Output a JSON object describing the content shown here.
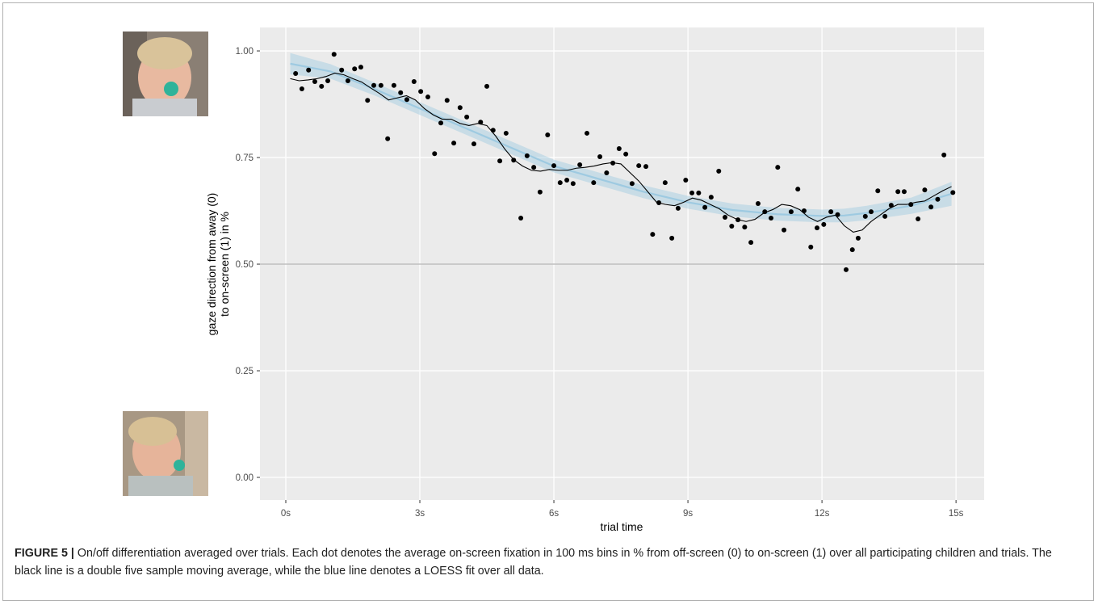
{
  "chart_data": {
    "type": "scatter",
    "xlabel": "trial time",
    "ylabel": [
      "gaze direction from away (0)",
      "to on-screen (1) in %"
    ],
    "xlim": [
      -0.578,
      15.63
    ],
    "ylim": [
      -0.053,
      1.055
    ],
    "xticks": [
      {
        "value": 0,
        "label": "0s"
      },
      {
        "value": 3,
        "label": "3s"
      },
      {
        "value": 6,
        "label": "6s"
      },
      {
        "value": 9,
        "label": "9s"
      },
      {
        "value": 12,
        "label": "12s"
      },
      {
        "value": 15,
        "label": "15s"
      }
    ],
    "yticks": [
      {
        "value": 0,
        "label": "0.00"
      },
      {
        "value": 0.25,
        "label": "0.25"
      },
      {
        "value": 0.5,
        "label": "0.50"
      },
      {
        "value": 0.75,
        "label": "0.75"
      },
      {
        "value": 1,
        "label": "1.00"
      }
    ],
    "grid": true,
    "hline": 0.5,
    "series": [
      {
        "type": "band",
        "color": "#9ecae1",
        "x": [
          0.1,
          1,
          2,
          3,
          4,
          5,
          6,
          7,
          8,
          9,
          10,
          11,
          12,
          12.5,
          13,
          14,
          14.9
        ],
        "lower": [
          0.945,
          0.935,
          0.895,
          0.85,
          0.805,
          0.76,
          0.715,
          0.685,
          0.655,
          0.63,
          0.612,
          0.602,
          0.598,
          0.598,
          0.603,
          0.618,
          0.637
        ],
        "upper": [
          0.995,
          0.969,
          0.925,
          0.88,
          0.835,
          0.79,
          0.745,
          0.715,
          0.685,
          0.66,
          0.642,
          0.632,
          0.628,
          0.63,
          0.637,
          0.656,
          0.693
        ]
      },
      {
        "type": "line",
        "color": "#9ecae1",
        "x": [
          0.1,
          1,
          2,
          3,
          4,
          5,
          6,
          7,
          8,
          9,
          10,
          11,
          12,
          12.5,
          13,
          14,
          14.9
        ],
        "values": [
          0.97,
          0.952,
          0.91,
          0.865,
          0.82,
          0.775,
          0.73,
          0.7,
          0.67,
          0.645,
          0.627,
          0.617,
          0.613,
          0.614,
          0.62,
          0.637,
          0.665
        ]
      },
      {
        "type": "scatter",
        "color": "#000000",
        "x": [
          0.22,
          0.36,
          0.51,
          0.65,
          0.8,
          0.94,
          1.08,
          1.25,
          1.39,
          1.54,
          1.68,
          1.83,
          1.97,
          2.13,
          2.28,
          2.42,
          2.57,
          2.71,
          2.87,
          3.02,
          3.18,
          3.33,
          3.47,
          3.61,
          3.76,
          3.9,
          4.05,
          4.21,
          4.36,
          4.5,
          4.64,
          4.79,
          4.93,
          5.1,
          5.26,
          5.4,
          5.55,
          5.69,
          5.86,
          6.0,
          6.14,
          6.29,
          6.43,
          6.58,
          6.74,
          6.89,
          7.03,
          7.18,
          7.32,
          7.46,
          7.61,
          7.75,
          7.9,
          8.06,
          8.21,
          8.35,
          8.49,
          8.64,
          8.78,
          8.95,
          9.09,
          9.24,
          9.38,
          9.52,
          9.69,
          9.83,
          9.98,
          10.12,
          10.27,
          10.41,
          10.57,
          10.72,
          10.86,
          11.01,
          11.15,
          11.31,
          11.46,
          11.6,
          11.75,
          11.89,
          12.04,
          12.2,
          12.35,
          12.54,
          12.68,
          12.81,
          12.97,
          13.1,
          13.25,
          13.41,
          13.55,
          13.7,
          13.84,
          13.99,
          14.15,
          14.3,
          14.44,
          14.59,
          14.73,
          14.93
        ],
        "values": [
          0.947,
          0.911,
          0.955,
          0.928,
          0.917,
          0.93,
          0.992,
          0.955,
          0.93,
          0.958,
          0.962,
          0.884,
          0.919,
          0.919,
          0.794,
          0.919,
          0.902,
          0.886,
          0.928,
          0.905,
          0.892,
          0.759,
          0.831,
          0.884,
          0.784,
          0.867,
          0.845,
          0.782,
          0.833,
          0.917,
          0.814,
          0.742,
          0.807,
          0.744,
          0.608,
          0.754,
          0.727,
          0.669,
          0.803,
          0.731,
          0.691,
          0.697,
          0.689,
          0.733,
          0.807,
          0.691,
          0.752,
          0.714,
          0.737,
          0.771,
          0.758,
          0.689,
          0.731,
          0.729,
          0.57,
          0.644,
          0.691,
          0.561,
          0.631,
          0.697,
          0.667,
          0.667,
          0.633,
          0.657,
          0.718,
          0.61,
          0.589,
          0.604,
          0.587,
          0.551,
          0.642,
          0.623,
          0.608,
          0.727,
          0.58,
          0.623,
          0.676,
          0.625,
          0.54,
          0.585,
          0.593,
          0.623,
          0.616,
          0.487,
          0.534,
          0.561,
          0.612,
          0.623,
          0.672,
          0.612,
          0.638,
          0.67,
          0.67,
          0.64,
          0.606,
          0.674,
          0.634,
          0.652,
          0.756,
          0.668
        ]
      },
      {
        "type": "line",
        "color": "#000000",
        "x": [
          0.1,
          0.3,
          0.5,
          0.7,
          0.9,
          1.1,
          1.3,
          1.5,
          1.7,
          1.9,
          2.1,
          2.3,
          2.5,
          2.7,
          2.9,
          3.1,
          3.3,
          3.5,
          3.7,
          3.9,
          4.1,
          4.3,
          4.5,
          4.7,
          4.9,
          5.1,
          5.3,
          5.5,
          5.7,
          5.9,
          6.1,
          6.3,
          6.5,
          6.7,
          6.9,
          7.1,
          7.3,
          7.5,
          7.7,
          7.9,
          8.1,
          8.3,
          8.5,
          8.7,
          8.9,
          9.1,
          9.3,
          9.5,
          9.7,
          9.9,
          10.1,
          10.3,
          10.5,
          10.7,
          10.9,
          11.1,
          11.3,
          11.5,
          11.7,
          11.9,
          12.1,
          12.3,
          12.5,
          12.7,
          12.9,
          13.1,
          13.3,
          13.5,
          13.7,
          13.9,
          14.1,
          14.3,
          14.5,
          14.7,
          14.9
        ],
        "values": [
          0.935,
          0.93,
          0.932,
          0.935,
          0.94,
          0.948,
          0.944,
          0.935,
          0.927,
          0.913,
          0.9,
          0.885,
          0.89,
          0.895,
          0.885,
          0.865,
          0.85,
          0.84,
          0.84,
          0.83,
          0.825,
          0.83,
          0.825,
          0.8,
          0.77,
          0.745,
          0.73,
          0.72,
          0.718,
          0.722,
          0.72,
          0.72,
          0.725,
          0.727,
          0.73,
          0.735,
          0.738,
          0.735,
          0.715,
          0.695,
          0.67,
          0.645,
          0.64,
          0.637,
          0.645,
          0.655,
          0.65,
          0.64,
          0.63,
          0.615,
          0.605,
          0.6,
          0.605,
          0.62,
          0.628,
          0.64,
          0.637,
          0.628,
          0.61,
          0.6,
          0.61,
          0.615,
          0.59,
          0.575,
          0.58,
          0.6,
          0.615,
          0.63,
          0.64,
          0.64,
          0.645,
          0.648,
          0.66,
          0.672,
          0.682
        ]
      }
    ]
  },
  "caption": {
    "label": "FIGURE 5 |",
    "text": "On/off differentiation averaged over trials. Each dot denotes the average on-screen fixation in 100 ms bins in % from off-screen (0) to on-screen (1) over all participating children and trials. The black line is a double five sample moving average, while the blue line denotes a LOESS fit over all data."
  }
}
